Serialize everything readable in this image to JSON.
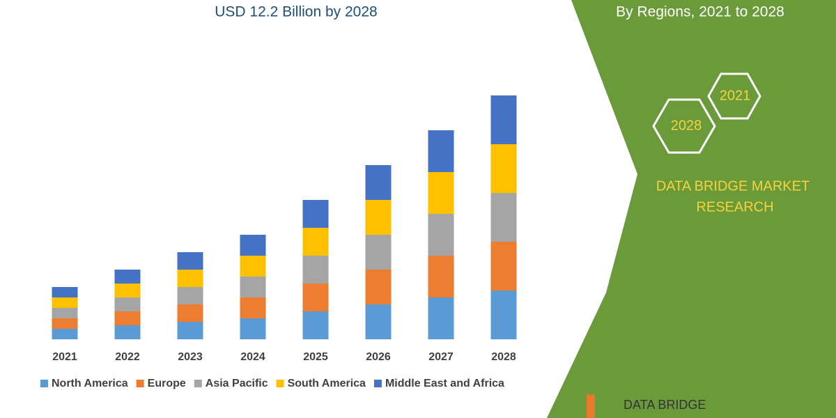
{
  "chart_data": {
    "type": "stacked-bar",
    "title": "USD 12.2 Billion by 2028",
    "categories": [
      "2021",
      "2022",
      "2023",
      "2024",
      "2025",
      "2026",
      "2027",
      "2028"
    ],
    "series": [
      {
        "name": "North America",
        "color": "#5b9bd5",
        "values": [
          3,
          4,
          5,
          6,
          8,
          10,
          12,
          14
        ]
      },
      {
        "name": "Europe",
        "color": "#ed7d31",
        "values": [
          3,
          4,
          5,
          6,
          8,
          10,
          12,
          14
        ]
      },
      {
        "name": "Asia Pacific",
        "color": "#a5a5a5",
        "values": [
          3,
          4,
          5,
          6,
          8,
          10,
          12,
          14
        ]
      },
      {
        "name": "South America",
        "color": "#ffc000",
        "values": [
          3,
          4,
          5,
          6,
          8,
          10,
          12,
          14
        ]
      },
      {
        "name": "Middle East and Africa",
        "color": "#4472c4",
        "values": [
          3,
          4,
          5,
          6,
          8,
          10,
          12,
          14
        ]
      }
    ]
  },
  "panel": {
    "subtitle": "By Regions, 2021 to 2028",
    "hex_top": "2021",
    "hex_bottom": "2028",
    "brand_lines": [
      "DATA BRIDGE MARKET",
      "RESEARCH"
    ],
    "logo": "DATA BRIDGE"
  }
}
